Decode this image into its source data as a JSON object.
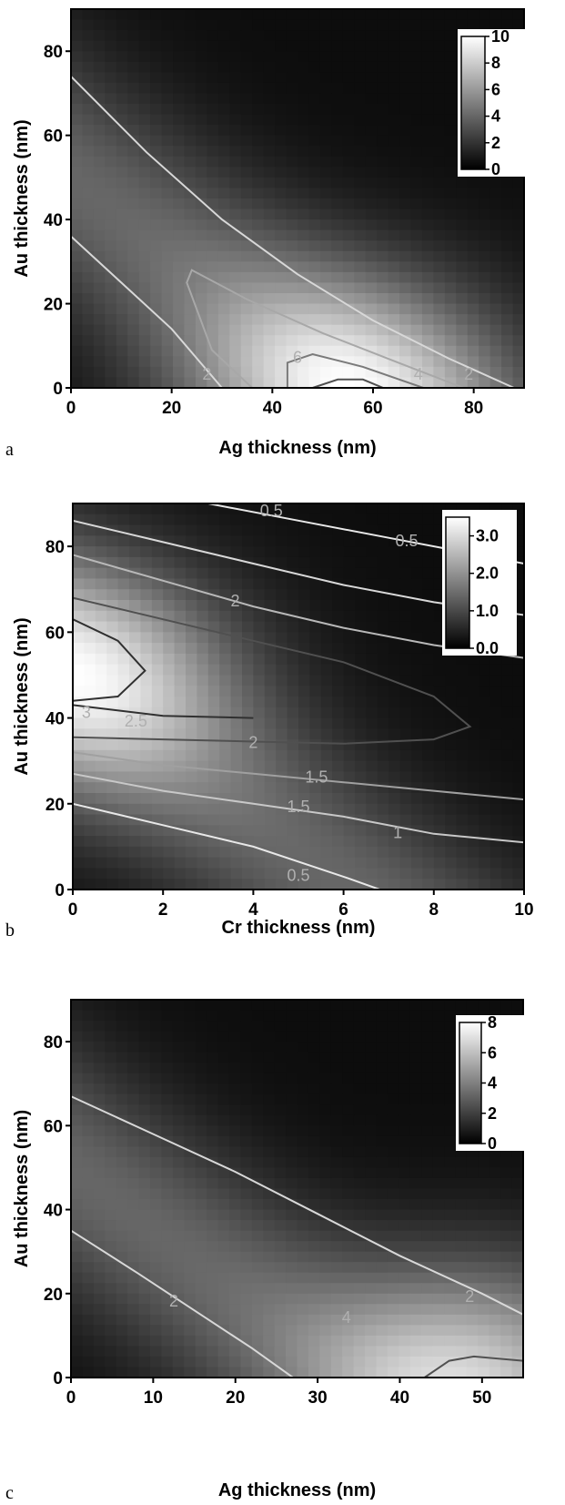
{
  "chart_data": [
    {
      "type": "heatmap",
      "panel_label": "a",
      "xlabel": "Ag thickness (nm)",
      "ylabel": "Au thickness (nm)",
      "xlim": [
        0,
        90
      ],
      "ylim": [
        0,
        90
      ],
      "xticks": [
        0,
        20,
        40,
        60,
        80
      ],
      "yticks": [
        0,
        20,
        40,
        60,
        80
      ],
      "colorbar": {
        "min": 0,
        "max": 10,
        "ticks": [
          0,
          2,
          4,
          6,
          8,
          10
        ],
        "position": "top-right"
      },
      "peak": {
        "x": 55,
        "y": 0,
        "value": 10
      },
      "contours": [
        {
          "level": 2,
          "color": "#d8d8d8",
          "label": "2",
          "points": [
            [
              0,
              74
            ],
            [
              15,
              56
            ],
            [
              30,
              40
            ],
            [
              45,
              27
            ],
            [
              60,
              16
            ],
            [
              75,
              7
            ],
            [
              88,
              0
            ]
          ]
        },
        {
          "level": 2,
          "color": "#d8d8d8",
          "label": "2",
          "points": [
            [
              0,
              36
            ],
            [
              10,
              25
            ],
            [
              20,
              14
            ],
            [
              30,
              0
            ]
          ]
        },
        {
          "level": 4,
          "color": "#a8a8a8",
          "label": "4",
          "points": [
            [
              36,
              0
            ],
            [
              28,
              9
            ],
            [
              23,
              25
            ],
            [
              24,
              28
            ],
            [
              35,
              21
            ],
            [
              50,
              13
            ],
            [
              65,
              6
            ],
            [
              78,
              0
            ]
          ]
        },
        {
          "level": 6,
          "color": "#7a7a7a",
          "label": "6",
          "points": [
            [
              43,
              0
            ],
            [
              43,
              6
            ],
            [
              48,
              8
            ],
            [
              58,
              5
            ],
            [
              70,
              0
            ]
          ]
        },
        {
          "level": 8,
          "color": "#505050",
          "label": "",
          "points": [
            [
              48,
              0
            ],
            [
              53,
              2
            ],
            [
              58,
              2
            ],
            [
              62,
              0
            ]
          ]
        }
      ],
      "contour_labels": [
        {
          "text": "2",
          "x": 27,
          "y": 3
        },
        {
          "text": "6",
          "x": 45,
          "y": 7
        },
        {
          "text": "4",
          "x": 69,
          "y": 3
        },
        {
          "text": "2",
          "x": 79,
          "y": 3
        }
      ]
    },
    {
      "type": "heatmap",
      "panel_label": "b",
      "xlabel": "Cr thickness (nm)",
      "ylabel": "Au thickness (nm)",
      "xlim": [
        0,
        10
      ],
      "ylim": [
        0,
        90
      ],
      "xticks": [
        0,
        2,
        4,
        6,
        8,
        10
      ],
      "yticks": [
        0,
        20,
        40,
        60,
        80
      ],
      "colorbar": {
        "min": 0.0,
        "max": 3.5,
        "ticks": [
          "0.0",
          "1.0",
          "2.0",
          "3.0"
        ],
        "tick_values": [
          0,
          1,
          2,
          3
        ],
        "position": "top-right"
      },
      "peak": {
        "x": 0,
        "y": 50,
        "value": 3.5
      },
      "contours": [
        {
          "level": 0.5,
          "color": "#e8e8e8",
          "label": "0.5",
          "points": [
            [
              3,
              90
            ],
            [
              5,
              86
            ],
            [
              7,
              82
            ],
            [
              9,
              78
            ],
            [
              10,
              76
            ]
          ]
        },
        {
          "level": 1,
          "color": "#d8d8d8",
          "label": "1",
          "points": [
            [
              0,
              86
            ],
            [
              2,
              81
            ],
            [
              4,
              76
            ],
            [
              6,
              71
            ],
            [
              8,
              67
            ],
            [
              10,
              64
            ]
          ]
        },
        {
          "level": 1.5,
          "color": "#b8b8b8",
          "label": "",
          "points": [
            [
              0,
              78
            ],
            [
              2,
              72
            ],
            [
              4,
              66
            ],
            [
              6,
              61
            ],
            [
              8,
              57
            ],
            [
              10,
              54
            ]
          ]
        },
        {
          "level": 2,
          "color": "#505050",
          "label": "2",
          "points": [
            [
              0,
              68
            ],
            [
              2,
              63
            ],
            [
              4,
              58
            ],
            [
              6,
              53
            ],
            [
              8,
              45
            ],
            [
              8.8,
              38
            ],
            [
              8,
              35
            ],
            [
              6,
              34
            ],
            [
              4,
              34.5
            ],
            [
              2,
              35
            ],
            [
              0,
              35.5
            ]
          ]
        },
        {
          "level": 2.5,
          "color": "#303030",
          "label": "2.5",
          "points": [
            [
              0,
              63
            ],
            [
              1,
              58
            ],
            [
              1.6,
              51
            ],
            [
              1,
              45
            ],
            [
              0,
              44
            ]
          ]
        },
        {
          "level": 3,
          "color": "#303030",
          "label": "3",
          "points": [
            [
              0,
              43
            ],
            [
              2,
              40.5
            ],
            [
              4,
              40
            ]
          ]
        },
        {
          "level": 1.5,
          "color": "#a0a0a0",
          "label": "1.5",
          "points": [
            [
              0,
              32
            ],
            [
              2,
              29
            ],
            [
              4,
              27
            ],
            [
              6,
              25
            ],
            [
              8,
              23
            ],
            [
              10,
              21
            ]
          ]
        },
        {
          "level": 1,
          "color": "#c8c8c8",
          "label": "1",
          "points": [
            [
              0,
              27
            ],
            [
              2,
              23
            ],
            [
              4,
              20
            ],
            [
              6,
              17
            ],
            [
              8,
              13
            ],
            [
              10,
              11
            ]
          ]
        },
        {
          "level": 0.5,
          "color": "#e8e8e8",
          "label": "0.5",
          "points": [
            [
              0,
              20
            ],
            [
              2,
              15
            ],
            [
              4,
              10
            ],
            [
              6,
              3
            ],
            [
              6.8,
              0
            ]
          ]
        }
      ],
      "contour_labels": [
        {
          "text": "0.5",
          "x": 4.4,
          "y": 88
        },
        {
          "text": "0.5",
          "x": 7.4,
          "y": 81
        },
        {
          "text": "2",
          "x": 3.6,
          "y": 67
        },
        {
          "text": "3",
          "x": 0.3,
          "y": 41
        },
        {
          "text": "2.5",
          "x": 1.4,
          "y": 39
        },
        {
          "text": "2",
          "x": 4.0,
          "y": 34
        },
        {
          "text": "1.5",
          "x": 5.4,
          "y": 26
        },
        {
          "text": "1.5",
          "x": 5.0,
          "y": 19
        },
        {
          "text": "1",
          "x": 7.2,
          "y": 13
        },
        {
          "text": "0.5",
          "x": 5.0,
          "y": 3
        }
      ]
    },
    {
      "type": "heatmap",
      "panel_label": "c",
      "xlabel": "Ag thickness (nm)",
      "ylabel": "Au thickness (nm)",
      "xlim": [
        0,
        55
      ],
      "ylim": [
        0,
        90
      ],
      "xticks": [
        0,
        10,
        20,
        30,
        40,
        50
      ],
      "yticks": [
        0,
        20,
        40,
        60,
        80
      ],
      "colorbar": {
        "min": 0,
        "max": 8,
        "ticks": [
          0,
          2,
          4,
          6,
          8
        ],
        "position": "top-right"
      },
      "peak": {
        "x": 50,
        "y": 2,
        "value": 8
      },
      "contours": [
        {
          "level": 2,
          "color": "#d8d8d8",
          "label": "2",
          "points": [
            [
              0,
              67
            ],
            [
              10,
              58
            ],
            [
              20,
              49
            ],
            [
              30,
              39
            ],
            [
              40,
              29
            ],
            [
              50,
              20
            ],
            [
              55,
              15
            ]
          ]
        },
        {
          "level": 2,
          "color": "#d8d8d8",
          "label": "2",
          "points": [
            [
              0,
              35
            ],
            [
              8,
              25
            ],
            [
              15,
              16
            ],
            [
              22,
              7
            ],
            [
              27,
              0
            ]
          ]
        },
        {
          "level": 6,
          "color": "#505050",
          "label": "",
          "points": [
            [
              43,
              0
            ],
            [
              46,
              4
            ],
            [
              49,
              5
            ],
            [
              55,
              4
            ]
          ]
        }
      ],
      "contour_labels": [
        {
          "text": "2",
          "x": 12.5,
          "y": 18
        },
        {
          "text": "4",
          "x": 33.5,
          "y": 14
        },
        {
          "text": "2",
          "x": 48.5,
          "y": 19
        }
      ]
    }
  ]
}
